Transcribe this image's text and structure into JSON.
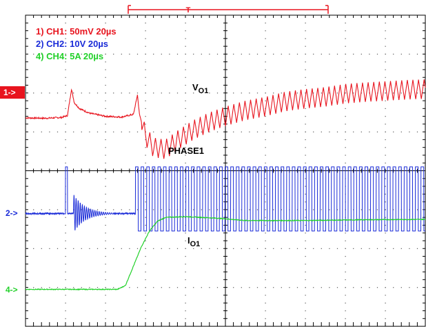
{
  "chart_data": {
    "type": "line",
    "title": "",
    "xlabel": "",
    "ylabel": "",
    "grid": true,
    "grid_divisions": {
      "x": 10,
      "y": 8
    },
    "x_range_divisions": [
      0,
      10
    ],
    "y_range_divisions": [
      -4,
      4
    ],
    "legend": {
      "placement": "top-left",
      "entries": [
        {
          "text": "1) CH1: 50mV 20µs",
          "color": "#e8141e"
        },
        {
          "text": "2) CH2: 10V 20µs",
          "color": "#1a2bd8"
        },
        {
          "text": "4) CH4: 5A 20µs",
          "color": "#22d12a"
        }
      ]
    },
    "channel_markers": [
      {
        "text": "1->",
        "color": "#e8141e",
        "y_div": 1.4,
        "filled": true
      },
      {
        "text": "2->",
        "color": "#1a2bd8",
        "y_div": -1.4,
        "filled": false
      },
      {
        "text": "4->",
        "color": "#22d12a",
        "y_div": -3.1,
        "filled": false
      }
    ],
    "trigger": {
      "symbol": "T",
      "color": "#e8141e"
    },
    "annotations": [
      {
        "id": "vo1",
        "text": "V",
        "sub": "O1",
        "x_div": 4.65,
        "y_div": 1.8
      },
      {
        "id": "phase1",
        "text": "PHASE1",
        "x_div": 3.6,
        "y_div": 0.45
      },
      {
        "id": "io1",
        "text": "I",
        "sub": "O1",
        "x_div": 4.5,
        "y_div": -1.85
      }
    ],
    "series": [
      {
        "name": "CH1",
        "color": "#e8141e",
        "scale": "50mV/div",
        "points": [
          [
            0,
            1.36
          ],
          [
            0.5,
            1.35
          ],
          [
            0.9,
            1.37
          ],
          [
            1.05,
            1.42
          ],
          [
            1.15,
            2.1
          ],
          [
            1.22,
            1.75
          ],
          [
            1.35,
            1.6
          ],
          [
            1.6,
            1.48
          ],
          [
            2.0,
            1.4
          ],
          [
            2.4,
            1.38
          ],
          [
            2.7,
            1.45
          ],
          [
            2.8,
            1.95
          ],
          [
            2.85,
            1.45
          ],
          [
            3.0,
            0.9
          ],
          [
            3.2,
            0.6
          ],
          [
            3.5,
            0.55
          ],
          [
            3.8,
            0.78
          ],
          [
            4.2,
            1.05
          ],
          [
            4.6,
            1.25
          ],
          [
            5.0,
            1.4
          ],
          [
            5.5,
            1.55
          ],
          [
            6.0,
            1.65
          ],
          [
            6.5,
            1.78
          ],
          [
            7.0,
            1.85
          ],
          [
            7.5,
            1.9
          ],
          [
            8.0,
            1.98
          ],
          [
            8.5,
            2.02
          ],
          [
            9.0,
            2.05
          ],
          [
            9.5,
            2.08
          ],
          [
            10,
            2.1
          ]
        ],
        "ripple": {
          "x_start_div": 2.9,
          "period_div": 0.14,
          "amplitude_div": 0.25
        }
      },
      {
        "name": "CH2",
        "color": "#1a2bd8",
        "scale": "10V/div",
        "points": [
          [
            0,
            -1.1
          ],
          [
            1.0,
            -1.1
          ],
          [
            1.05,
            -0.05
          ],
          [
            1.1,
            -1.1
          ],
          [
            1.25,
            -1.1
          ],
          [
            2.6,
            -1.1
          ],
          [
            2.7,
            -1.1
          ],
          [
            10,
            -1.1
          ]
        ],
        "switching": {
          "x_start_div": 2.75,
          "period_div": 0.14,
          "low_div": -1.55,
          "high_div": 0.1,
          "ringing_x_div": [
            1.2,
            2.2
          ]
        }
      },
      {
        "name": "CH4",
        "color": "#22d12a",
        "scale": "5A/div",
        "points": [
          [
            0,
            -3.05
          ],
          [
            2.3,
            -3.05
          ],
          [
            2.5,
            -2.95
          ],
          [
            2.7,
            -2.45
          ],
          [
            2.9,
            -1.95
          ],
          [
            3.1,
            -1.55
          ],
          [
            3.3,
            -1.3
          ],
          [
            3.5,
            -1.2
          ],
          [
            4.0,
            -1.18
          ],
          [
            4.8,
            -1.22
          ],
          [
            5.5,
            -1.28
          ],
          [
            7.0,
            -1.28
          ],
          [
            8.5,
            -1.26
          ],
          [
            10,
            -1.25
          ]
        ]
      }
    ]
  }
}
